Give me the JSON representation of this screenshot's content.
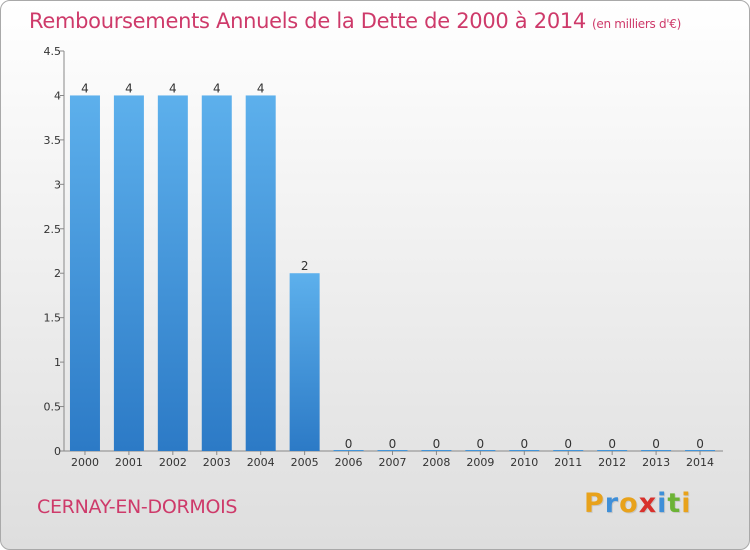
{
  "chart_data": {
    "type": "bar",
    "title": "Remboursements Annuels de la Dette de 2000 à 2014",
    "unit_note": "(en milliers d'€)",
    "categories": [
      "2000",
      "2001",
      "2002",
      "2003",
      "2004",
      "2005",
      "2006",
      "2007",
      "2008",
      "2009",
      "2010",
      "2011",
      "2012",
      "2013",
      "2014"
    ],
    "values": [
      4,
      4,
      4,
      4,
      4,
      2,
      0,
      0,
      0,
      0,
      0,
      0,
      0,
      0,
      0
    ],
    "ylim": [
      0,
      4.5
    ],
    "yticks": [
      "0",
      "0.5",
      "1",
      "1.5",
      "2",
      "2.5",
      "3",
      "3.5",
      "4",
      "4.5"
    ],
    "bar_color": "#4a9fe0",
    "title_color": "#ce3a6a"
  },
  "commune": "CERNAY-EN-DORMOIS",
  "logo": {
    "letters": [
      "P",
      "r",
      "o",
      "x",
      "i",
      "t",
      "i"
    ],
    "colors": [
      "#e8a21b",
      "#3f8fd8",
      "#e8a21b",
      "#d8312c",
      "#3f8fd8",
      "#6cb335",
      "#e8a21b"
    ]
  }
}
